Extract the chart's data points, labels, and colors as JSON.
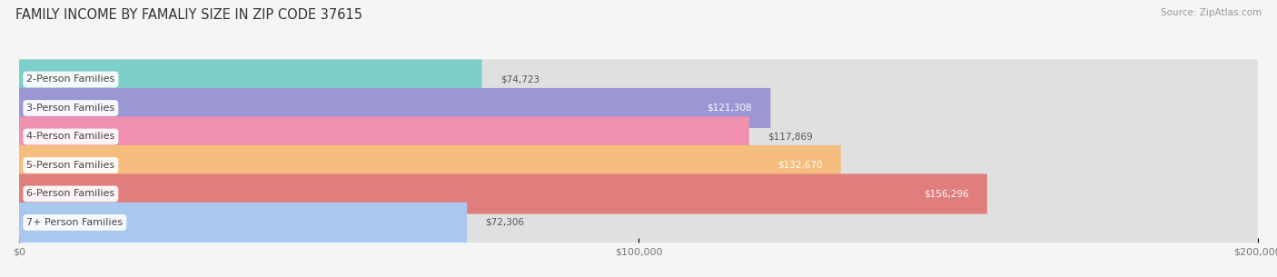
{
  "title": "FAMILY INCOME BY FAMALIY SIZE IN ZIP CODE 37615",
  "source": "Source: ZipAtlas.com",
  "categories": [
    "2-Person Families",
    "3-Person Families",
    "4-Person Families",
    "5-Person Families",
    "6-Person Families",
    "7+ Person Families"
  ],
  "values": [
    74723,
    121308,
    117869,
    132670,
    156296,
    72306
  ],
  "bar_colors": [
    "#7DCFCA",
    "#9B96D4",
    "#F08FAE",
    "#F5BE7E",
    "#E07E7E",
    "#A8C8F0"
  ],
  "bg_color": "#f5f5f5",
  "bar_bg_color": "#e0e0e0",
  "xlim": [
    0,
    200000
  ],
  "xticks": [
    0,
    100000,
    200000
  ],
  "xticklabels": [
    "$0",
    "$100,000",
    "$200,000"
  ],
  "title_fontsize": 10.5,
  "source_fontsize": 7.5,
  "label_fontsize": 8,
  "value_fontsize": 7.5,
  "tick_fontsize": 8,
  "value_inside": [
    false,
    true,
    false,
    true,
    true,
    false
  ]
}
